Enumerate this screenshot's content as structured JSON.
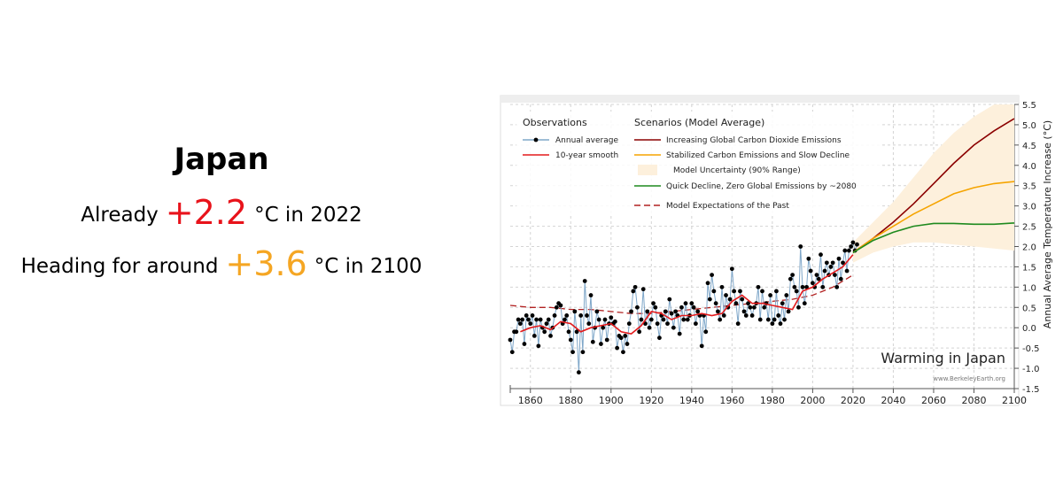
{
  "headline": {
    "title": "Japan",
    "line1": {
      "prefix": "Already",
      "value": "+2.2",
      "suffix": "°C in 2022"
    },
    "line2": {
      "prefix": "Heading for around",
      "value": "+3.6",
      "suffix": "°C in 2100"
    }
  },
  "chart_data": {
    "type": "line",
    "title": "Warming in Japan",
    "credit": "www.BerkeleyEarth.org",
    "y_axis_label": "Annual Average Temperature Increase (°C)",
    "legend_headings": [
      "Observations",
      "Scenarios (Model Average)"
    ],
    "xlim": [
      1850,
      2100
    ],
    "xticks": [
      1860,
      1880,
      1900,
      1920,
      1940,
      1960,
      1980,
      2000,
      2020,
      2040,
      2060,
      2080,
      2100
    ],
    "ylim": [
      -1.5,
      5.5
    ],
    "yticks": [
      -1.5,
      {
        "value": -1,
        "label": "-1.0"
      },
      -0.5,
      {
        "value": 0,
        "label": "0.0"
      },
      0.5,
      {
        "value": 1,
        "label": "1.0"
      },
      1.5,
      {
        "value": 2,
        "label": "2.0"
      },
      2.5,
      {
        "value": 3,
        "label": "3.0"
      },
      3.5,
      {
        "value": 4,
        "label": "4.0"
      },
      4.5,
      {
        "value": 5,
        "label": "5.0"
      },
      5.5
    ],
    "grid": true,
    "series": [
      {
        "name": "Annual average",
        "color": "#7fa7c9",
        "marker_color": "#000000",
        "style": "markers",
        "x": [
          1850,
          1851,
          1852,
          1853,
          1854,
          1855,
          1856,
          1857,
          1858,
          1859,
          1860,
          1861,
          1862,
          1863,
          1864,
          1865,
          1866,
          1867,
          1868,
          1869,
          1870,
          1871,
          1872,
          1873,
          1874,
          1875,
          1876,
          1877,
          1878,
          1879,
          1880,
          1881,
          1882,
          1883,
          1884,
          1885,
          1886,
          1887,
          1888,
          1889,
          1890,
          1891,
          1892,
          1893,
          1894,
          1895,
          1896,
          1897,
          1898,
          1899,
          1900,
          1901,
          1902,
          1903,
          1904,
          1905,
          1906,
          1907,
          1908,
          1909,
          1910,
          1911,
          1912,
          1913,
          1914,
          1915,
          1916,
          1917,
          1918,
          1919,
          1920,
          1921,
          1922,
          1923,
          1924,
          1925,
          1926,
          1927,
          1928,
          1929,
          1930,
          1931,
          1932,
          1933,
          1934,
          1935,
          1936,
          1937,
          1938,
          1939,
          1940,
          1941,
          1942,
          1943,
          1944,
          1945,
          1946,
          1947,
          1948,
          1949,
          1950,
          1951,
          1952,
          1953,
          1954,
          1955,
          1956,
          1957,
          1958,
          1959,
          1960,
          1961,
          1962,
          1963,
          1964,
          1965,
          1966,
          1967,
          1968,
          1969,
          1970,
          1971,
          1972,
          1973,
          1974,
          1975,
          1976,
          1977,
          1978,
          1979,
          1980,
          1981,
          1982,
          1983,
          1984,
          1985,
          1986,
          1987,
          1988,
          1989,
          1990,
          1991,
          1992,
          1993,
          1994,
          1995,
          1996,
          1997,
          1998,
          1999,
          2000,
          2001,
          2002,
          2003,
          2004,
          2005,
          2006,
          2007,
          2008,
          2009,
          2010,
          2011,
          2012,
          2013,
          2014,
          2015,
          2016,
          2017,
          2018,
          2019,
          2020,
          2021,
          2022
        ],
        "values": [
          -0.3,
          -0.6,
          -0.1,
          -0.1,
          0.2,
          0.1,
          0.2,
          -0.4,
          0.3,
          0.2,
          0.1,
          0.3,
          -0.2,
          0.2,
          -0.45,
          0.2,
          0.0,
          -0.1,
          0.1,
          0.2,
          -0.2,
          0.0,
          0.3,
          0.5,
          0.6,
          0.55,
          0.1,
          0.2,
          0.3,
          -0.1,
          -0.3,
          -0.6,
          0.4,
          -0.1,
          -1.1,
          0.3,
          -0.6,
          1.15,
          0.3,
          0.1,
          0.8,
          -0.35,
          0.0,
          0.4,
          0.2,
          -0.4,
          0.0,
          0.2,
          -0.3,
          0.1,
          0.25,
          0.1,
          0.15,
          -0.5,
          -0.2,
          -0.25,
          -0.6,
          -0.2,
          -0.4,
          0.1,
          0.4,
          0.9,
          1.0,
          0.5,
          -0.1,
          0.2,
          0.95,
          0.1,
          0.4,
          0.0,
          0.2,
          0.6,
          0.5,
          0.1,
          -0.25,
          0.3,
          0.2,
          0.4,
          0.1,
          0.7,
          0.35,
          0.0,
          0.4,
          0.3,
          -0.15,
          0.5,
          0.2,
          0.6,
          0.2,
          0.3,
          0.6,
          0.5,
          0.1,
          0.4,
          0.3,
          -0.45,
          0.3,
          -0.1,
          1.1,
          0.7,
          1.3,
          0.9,
          0.6,
          0.4,
          0.2,
          1.0,
          0.3,
          0.8,
          0.5,
          0.7,
          1.45,
          0.9,
          0.6,
          0.1,
          0.9,
          0.7,
          0.4,
          0.3,
          0.6,
          0.5,
          0.3,
          0.5,
          0.6,
          1.0,
          0.2,
          0.9,
          0.5,
          0.6,
          0.2,
          0.8,
          0.1,
          0.2,
          0.9,
          0.3,
          0.1,
          0.6,
          0.2,
          0.8,
          0.4,
          1.2,
          1.3,
          1.0,
          0.9,
          0.5,
          2.0,
          1.0,
          0.6,
          1.0,
          1.7,
          1.4,
          1.1,
          1.0,
          1.3,
          1.2,
          1.8,
          1.0,
          1.4,
          1.6,
          1.3,
          1.5,
          1.6,
          1.3,
          1.0,
          1.7,
          1.2,
          1.6,
          1.9,
          1.4,
          1.9,
          2.0,
          2.1,
          1.9,
          2.05
        ]
      },
      {
        "name": "10-year smooth",
        "color": "#e31a1c",
        "style": "line",
        "x": [
          1855,
          1860,
          1865,
          1870,
          1875,
          1880,
          1885,
          1890,
          1895,
          1900,
          1905,
          1910,
          1915,
          1920,
          1925,
          1930,
          1935,
          1940,
          1945,
          1950,
          1955,
          1960,
          1965,
          1970,
          1975,
          1980,
          1985,
          1990,
          1995,
          2000,
          2005,
          2010,
          2015,
          2020
        ],
        "values": [
          -0.1,
          0.0,
          0.05,
          -0.05,
          0.15,
          0.1,
          -0.1,
          0.0,
          0.05,
          0.1,
          -0.1,
          -0.15,
          0.05,
          0.4,
          0.35,
          0.2,
          0.3,
          0.3,
          0.35,
          0.3,
          0.35,
          0.65,
          0.8,
          0.6,
          0.6,
          0.55,
          0.5,
          0.45,
          0.9,
          1.0,
          1.2,
          1.35,
          1.5,
          1.8
        ]
      },
      {
        "name": "Increasing Global Carbon Dioxide Emissions",
        "color": "#8b0000",
        "style": "line",
        "x": [
          2020,
          2030,
          2040,
          2050,
          2060,
          2070,
          2080,
          2090,
          2100
        ],
        "values": [
          1.85,
          2.2,
          2.6,
          3.05,
          3.55,
          4.05,
          4.5,
          4.85,
          5.15
        ]
      },
      {
        "name": "Stabilized Carbon Emissions and Slow Decline",
        "color": "#f5a400",
        "style": "line",
        "x": [
          2020,
          2030,
          2040,
          2050,
          2060,
          2070,
          2080,
          2090,
          2100
        ],
        "values": [
          1.85,
          2.2,
          2.5,
          2.8,
          3.05,
          3.3,
          3.45,
          3.55,
          3.6
        ]
      },
      {
        "name": "Model Uncertainty (90% Range)",
        "color": "#fdf0dc",
        "style": "band",
        "x": [
          2020,
          2030,
          2040,
          2050,
          2060,
          2070,
          2080,
          2090,
          2100
        ],
        "lower": [
          1.6,
          1.85,
          2.0,
          2.1,
          2.1,
          2.05,
          2.0,
          1.95,
          1.9
        ],
        "upper": [
          2.1,
          2.6,
          3.1,
          3.7,
          4.3,
          4.8,
          5.2,
          5.5,
          5.5
        ]
      },
      {
        "name": "Quick Decline, Zero Global Emissions by ~2080",
        "color": "#1e8a1e",
        "style": "line",
        "x": [
          2020,
          2030,
          2040,
          2050,
          2060,
          2070,
          2080,
          2090,
          2100
        ],
        "values": [
          1.85,
          2.15,
          2.35,
          2.5,
          2.57,
          2.57,
          2.55,
          2.55,
          2.58
        ]
      },
      {
        "name": "Model Expectations of the Past",
        "color": "#b22222",
        "style": "dashed",
        "x": [
          1850,
          1860,
          1870,
          1880,
          1890,
          1900,
          1910,
          1920,
          1930,
          1940,
          1950,
          1960,
          1970,
          1980,
          1990,
          2000,
          2010,
          2020
        ],
        "values": [
          0.55,
          0.5,
          0.5,
          0.45,
          0.45,
          0.4,
          0.35,
          0.35,
          0.4,
          0.45,
          0.5,
          0.55,
          0.6,
          0.65,
          0.7,
          0.8,
          1.0,
          1.3
        ]
      }
    ]
  }
}
